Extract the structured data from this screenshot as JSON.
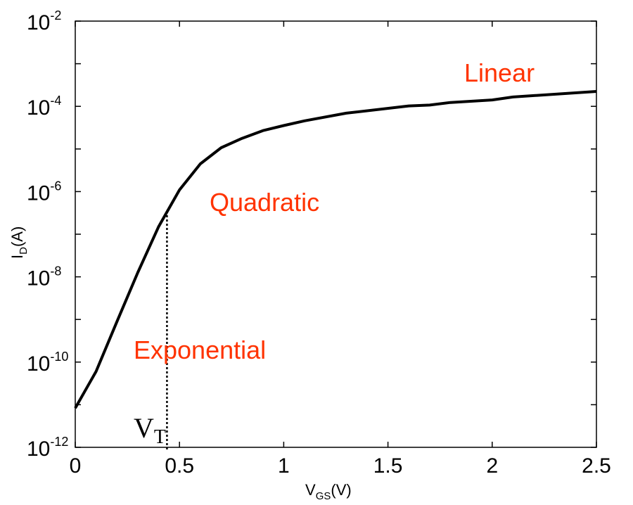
{
  "chart_data": {
    "type": "line",
    "title": "",
    "xlabel": {
      "main": "V",
      "sub": "GS",
      "unit": "(V)"
    },
    "ylabel": {
      "main": "I",
      "sub": "D",
      "unit": "(A)"
    },
    "xlim": [
      0,
      2.5
    ],
    "ylim_log10": [
      -12,
      -2
    ],
    "yscale": "log",
    "x_ticks": [
      "0",
      "0.5",
      "1",
      "1.5",
      "2",
      "2.5"
    ],
    "x_tick_values": [
      0,
      0.5,
      1,
      1.5,
      2,
      2.5
    ],
    "y_ticks": [
      {
        "base": "10",
        "exp": "-2",
        "value": -2
      },
      {
        "base": "10",
        "exp": "-4",
        "value": -4
      },
      {
        "base": "10",
        "exp": "-6",
        "value": -6
      },
      {
        "base": "10",
        "exp": "-8",
        "value": -8
      },
      {
        "base": "10",
        "exp": "-10",
        "value": -10
      },
      {
        "base": "10",
        "exp": "-12",
        "value": -12
      }
    ],
    "series": [
      {
        "name": "I_D",
        "color": "#000000",
        "x": [
          0,
          0.1,
          0.2,
          0.3,
          0.4,
          0.5,
          0.6,
          0.7,
          0.8,
          0.9,
          1.0,
          1.1,
          1.3,
          1.6,
          1.7,
          1.8,
          2.0,
          2.1,
          2.5
        ],
        "log10_y": [
          -11.08,
          -10.22,
          -9.05,
          -7.9,
          -6.82,
          -5.96,
          -5.35,
          -4.97,
          -4.75,
          -4.57,
          -4.45,
          -4.34,
          -4.16,
          -3.99,
          -3.97,
          -3.91,
          -3.85,
          -3.78,
          -3.65
        ]
      }
    ],
    "annotations": [
      {
        "text": "Linear",
        "color": "#ff3300"
      },
      {
        "text": "Quadratic",
        "color": "#ff3300"
      },
      {
        "text": "Exponential",
        "color": "#ff3300"
      },
      {
        "text": "V",
        "sub": "T",
        "x": 0.44
      }
    ],
    "grid": false
  }
}
